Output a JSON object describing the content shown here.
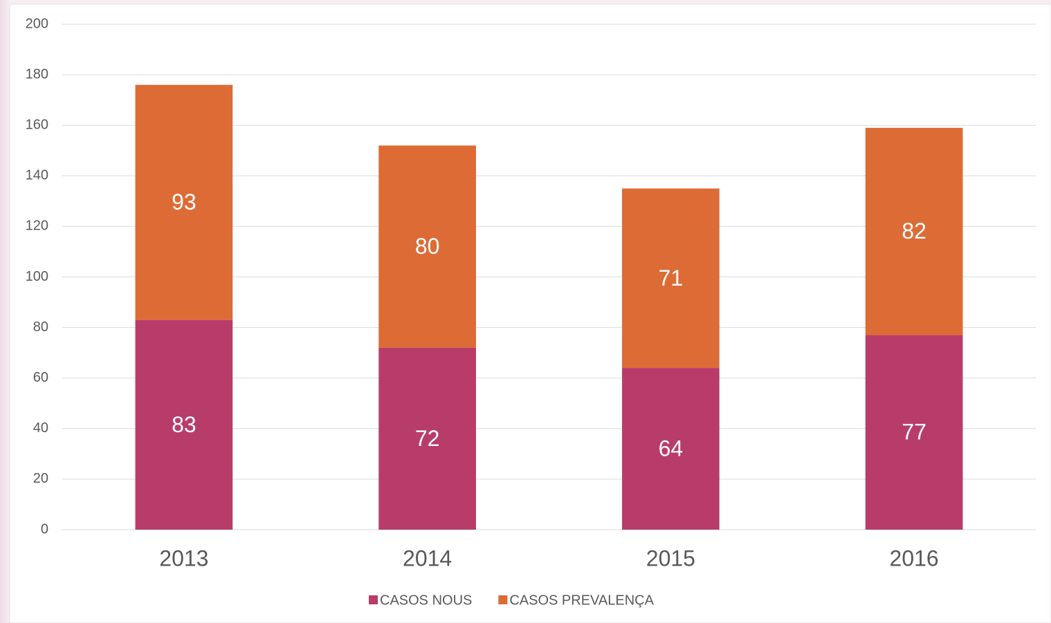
{
  "chart_data": {
    "type": "stacked_bar",
    "categories": [
      "2013",
      "2014",
      "2015",
      "2016"
    ],
    "series": [
      {
        "name": "CASOS NOUS",
        "color": "#b83c6a",
        "values": [
          83,
          72,
          64,
          77
        ]
      },
      {
        "name": "CASOS PREVALENÇA",
        "color": "#dd6b36",
        "values": [
          93,
          80,
          71,
          82
        ]
      }
    ],
    "ylim": [
      0,
      200
    ],
    "yticks": [
      0,
      20,
      40,
      60,
      80,
      100,
      120,
      140,
      160,
      180,
      200
    ],
    "grid": true,
    "legend": "bottom"
  }
}
